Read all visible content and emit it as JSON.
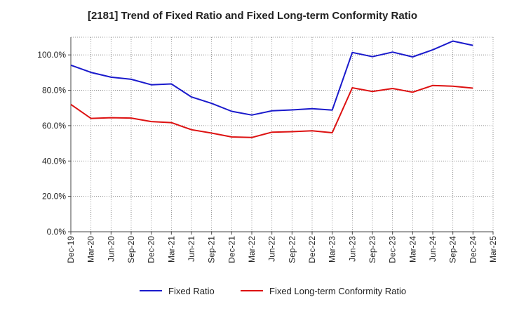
{
  "chart_data": {
    "type": "line",
    "title": "[2181]  Trend of Fixed Ratio and Fixed Long-term Conformity Ratio",
    "xlabel": "",
    "ylabel": "",
    "categories": [
      "Dec-19",
      "Mar-20",
      "Jun-20",
      "Sep-20",
      "Dec-20",
      "Mar-21",
      "Jun-21",
      "Sep-21",
      "Dec-21",
      "Mar-22",
      "Jun-22",
      "Sep-22",
      "Dec-22",
      "Mar-23",
      "Jun-23",
      "Sep-23",
      "Dec-23",
      "Mar-24",
      "Jun-24",
      "Sep-24",
      "Dec-24",
      "Mar-25"
    ],
    "y_tick_labels": [
      "0.0%",
      "20.0%",
      "40.0%",
      "60.0%",
      "80.0%",
      "100.0%"
    ],
    "y_ticks": [
      0,
      20,
      40,
      60,
      80,
      100
    ],
    "ylim": [
      0,
      110
    ],
    "grid": true,
    "legend_position": "bottom",
    "series": [
      {
        "name": "Fixed Ratio",
        "color": "#1a1acc",
        "values": [
          94.2,
          90.1,
          87.4,
          86.2,
          83.1,
          83.6,
          76.2,
          72.6,
          68.1,
          66.0,
          68.4,
          68.9,
          69.6,
          68.8,
          101.4,
          99.0,
          101.6,
          98.9,
          102.9,
          107.8,
          105.4,
          null
        ]
      },
      {
        "name": "Fixed Long-term Conformity Ratio",
        "color": "#dd1111",
        "values": [
          72.0,
          64.1,
          64.5,
          64.3,
          62.3,
          61.7,
          57.7,
          55.8,
          53.6,
          53.3,
          56.3,
          56.6,
          57.1,
          56.0,
          81.4,
          79.3,
          81.0,
          78.9,
          82.7,
          82.3,
          81.2,
          null
        ]
      }
    ]
  }
}
